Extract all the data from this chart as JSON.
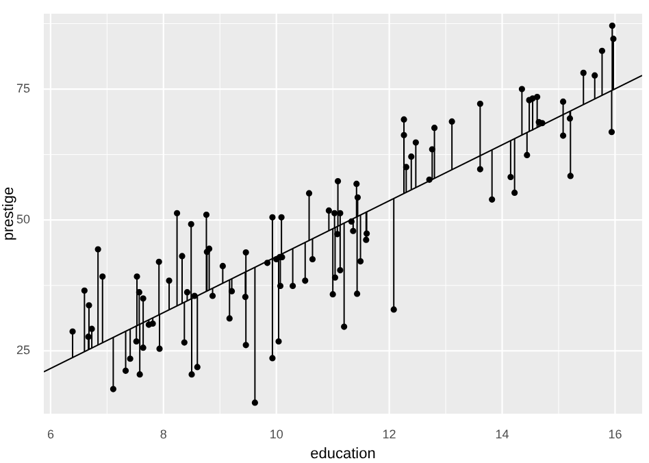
{
  "chart_data": {
    "type": "scatter",
    "xlabel": "education",
    "ylabel": "prestige",
    "xlim": [
      5.88,
      16.48
    ],
    "ylim": [
      13,
      89.4
    ],
    "xticks": [
      6,
      8,
      10,
      12,
      14,
      16
    ],
    "yticks": [
      25,
      50,
      75
    ],
    "grid": true,
    "legend": false,
    "marker": "circle",
    "series": [
      {
        "color": "#000000",
        "x": [
          6.39,
          6.6,
          6.68,
          6.67,
          6.73,
          6.84,
          6.92,
          7.11,
          7.33,
          7.41,
          7.53,
          7.57,
          7.64,
          7.52,
          7.58,
          7.64,
          7.74,
          7.81,
          7.92,
          7.93,
          8.1,
          8.24,
          8.33,
          8.42,
          8.37,
          8.49,
          8.5,
          8.55,
          8.6,
          8.76,
          8.77,
          8.81,
          8.87,
          9.05,
          9.17,
          9.21,
          9.46,
          9.45,
          9.46,
          9.62,
          9.84,
          9.93,
          9.93,
          10.0,
          10.06,
          10.1,
          10.09,
          10.07,
          10.04,
          10.29,
          10.51,
          10.58,
          10.64,
          10.93,
          11.03,
          11.0,
          11.04,
          11.09,
          11.08,
          11.13,
          11.13,
          11.2,
          11.33,
          11.36,
          11.42,
          11.44,
          11.43,
          11.49,
          11.6,
          11.59,
          12.08,
          12.26,
          12.26,
          12.3,
          12.39,
          12.47,
          12.71,
          12.76,
          12.8,
          13.11,
          13.61,
          13.61,
          13.82,
          14.15,
          14.22,
          14.35,
          14.44,
          14.48,
          14.54,
          14.62,
          14.65,
          14.71,
          15.08,
          15.08,
          15.2,
          15.21,
          15.44,
          15.64,
          15.77,
          15.95,
          15.97,
          15.94
        ],
        "values": [
          28.7,
          36.5,
          33.7,
          27.7,
          29.2,
          44.4,
          39.2,
          17.7,
          21.2,
          23.5,
          39.2,
          36.2,
          35.0,
          26.8,
          20.5,
          25.6,
          30.0,
          30.2,
          42.0,
          25.4,
          38.4,
          51.3,
          43.1,
          36.2,
          26.6,
          49.2,
          20.5,
          35.5,
          21.9,
          51.0,
          43.9,
          44.5,
          35.5,
          41.2,
          31.2,
          36.4,
          43.8,
          35.3,
          26.1,
          15.1,
          41.8,
          50.5,
          23.6,
          42.5,
          42.9,
          42.9,
          50.5,
          37.4,
          26.8,
          37.4,
          38.4,
          55.1,
          42.5,
          51.8,
          51.3,
          35.8,
          39.0,
          57.4,
          47.3,
          51.3,
          40.4,
          29.6,
          49.7,
          47.9,
          56.9,
          54.3,
          35.9,
          42.1,
          47.4,
          46.2,
          32.9,
          69.2,
          66.2,
          60.1,
          62.1,
          64.8,
          57.7,
          63.5,
          67.6,
          68.8,
          72.2,
          59.7,
          53.9,
          58.2,
          55.2,
          75.0,
          62.4,
          72.9,
          73.2,
          73.5,
          68.7,
          68.5,
          72.6,
          66.1,
          69.4,
          58.4,
          78.1,
          77.6,
          82.3,
          87.1,
          84.6,
          66.8
        ],
        "errors": [
          [
            23.7,
            28.7
          ],
          [
            24.8,
            36.5
          ],
          [
            25.3,
            33.7
          ],
          [
            25.2,
            27.7
          ],
          [
            25.5,
            29.2
          ],
          [
            26.1,
            44.4
          ],
          [
            26.6,
            39.2
          ],
          [
            17.7,
            27.6
          ],
          [
            21.2,
            28.7
          ],
          [
            23.5,
            29.2
          ],
          [
            29.8,
            39.2
          ],
          [
            30.0,
            36.2
          ],
          [
            30.4,
            35.0
          ],
          [
            26.8,
            29.8
          ],
          [
            20.5,
            30.1
          ],
          [
            25.6,
            30.4
          ],
          [
            30.0,
            30.9
          ],
          [
            30.2,
            31.3
          ],
          [
            31.9,
            42.0
          ],
          [
            25.4,
            31.9
          ],
          [
            32.9,
            38.4
          ],
          [
            33.6,
            51.3
          ],
          [
            34.1,
            43.1
          ],
          [
            34.5,
            36.2
          ],
          [
            26.6,
            34.3
          ],
          [
            34.9,
            49.2
          ],
          [
            20.5,
            35.0
          ],
          [
            35.3,
            35.5
          ],
          [
            21.9,
            35.5
          ],
          [
            36.4,
            51.0
          ],
          [
            36.4,
            43.9
          ],
          [
            36.6,
            44.5
          ],
          [
            35.5,
            37.0
          ],
          [
            37.9,
            41.2
          ],
          [
            31.2,
            38.6
          ],
          [
            36.4,
            38.8
          ],
          [
            40.1,
            43.8
          ],
          [
            35.3,
            40.1
          ],
          [
            26.1,
            40.1
          ],
          [
            15.1,
            41.0
          ],
          [
            41.8,
            42.1
          ],
          [
            42.6,
            50.5
          ],
          [
            23.6,
            42.6
          ],
          [
            42.5,
            43.0
          ],
          [
            42.9,
            43.3
          ],
          [
            42.9,
            43.5
          ],
          [
            43.5,
            50.5
          ],
          [
            37.4,
            43.4
          ],
          [
            26.8,
            43.2
          ],
          [
            37.4,
            44.5
          ],
          [
            38.4,
            45.7
          ],
          [
            46.1,
            55.1
          ],
          [
            42.5,
            46.4
          ],
          [
            48.0,
            51.8
          ],
          [
            48.5,
            51.3
          ],
          [
            35.8,
            48.3
          ],
          [
            39.0,
            48.6
          ],
          [
            48.8,
            57.4
          ],
          [
            47.3,
            48.8
          ],
          [
            49.0,
            51.3
          ],
          [
            40.4,
            49.0
          ],
          [
            29.6,
            49.4
          ],
          [
            49.7,
            50.1
          ],
          [
            47.9,
            50.3
          ],
          [
            50.6,
            56.9
          ],
          [
            50.7,
            54.3
          ],
          [
            35.9,
            50.6
          ],
          [
            42.1,
            51.0
          ],
          [
            47.4,
            51.5
          ],
          [
            46.2,
            51.5
          ],
          [
            32.9,
            54.1
          ],
          [
            55.1,
            69.2
          ],
          [
            55.1,
            66.2
          ],
          [
            55.3,
            60.1
          ],
          [
            55.8,
            62.1
          ],
          [
            56.2,
            64.8
          ],
          [
            57.5,
            57.7
          ],
          [
            57.7,
            63.5
          ],
          [
            58.0,
            67.6
          ],
          [
            59.6,
            68.8
          ],
          [
            62.3,
            72.2
          ],
          [
            59.7,
            62.3
          ],
          [
            53.9,
            63.4
          ],
          [
            58.2,
            65.2
          ],
          [
            55.2,
            65.5
          ],
          [
            66.2,
            75.0
          ],
          [
            62.4,
            66.7
          ],
          [
            67.0,
            72.9
          ],
          [
            67.1,
            73.2
          ],
          [
            67.7,
            73.5
          ],
          [
            67.8,
            68.7
          ],
          [
            68.1,
            68.5
          ],
          [
            70.1,
            72.6
          ],
          [
            66.1,
            70.1
          ],
          [
            69.4,
            70.8
          ],
          [
            58.4,
            70.8
          ],
          [
            72.0,
            78.1
          ],
          [
            73.1,
            77.6
          ],
          [
            73.8,
            82.3
          ],
          [
            74.8,
            87.1
          ],
          [
            74.9,
            84.6
          ],
          [
            66.8,
            74.7
          ]
        ]
      },
      {
        "type": "line",
        "color": "#000000",
        "marker": "none",
        "x": [
          5.88,
          16.48
        ],
        "values": [
          21.0,
          77.6
        ]
      }
    ]
  }
}
